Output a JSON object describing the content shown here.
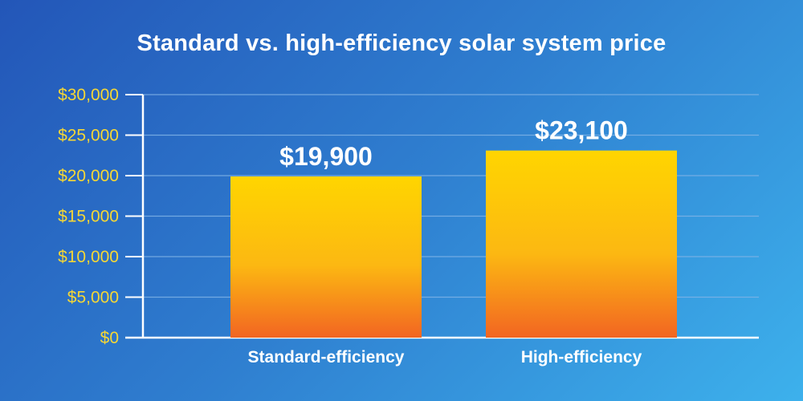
{
  "chart_data": {
    "type": "bar",
    "title": "Standard vs. high-efficiency solar system price",
    "categories": [
      "Standard-efficiency",
      "High-efficiency"
    ],
    "values": [
      19900,
      23100
    ],
    "data_labels": [
      "$19,900",
      "$23,100"
    ],
    "yticks": [
      0,
      5000,
      10000,
      15000,
      20000,
      25000,
      30000
    ],
    "ytick_labels": [
      "$0",
      "$5,000",
      "$10,000",
      "$15,000",
      "$20,000",
      "$25,000",
      "$30,000"
    ],
    "ylim": [
      0,
      30000
    ],
    "grid": true,
    "legend": "none",
    "xlabel": "",
    "ylabel": ""
  },
  "colors": {
    "background_start": "#2356b8",
    "background_end": "#3db1ec",
    "bar_top": "#ffd500",
    "bar_bottom": "#f26522",
    "tick_label": "#f5d735",
    "text": "#ffffff",
    "gridline": "#7fb3e6",
    "axis": "#ffffff"
  }
}
